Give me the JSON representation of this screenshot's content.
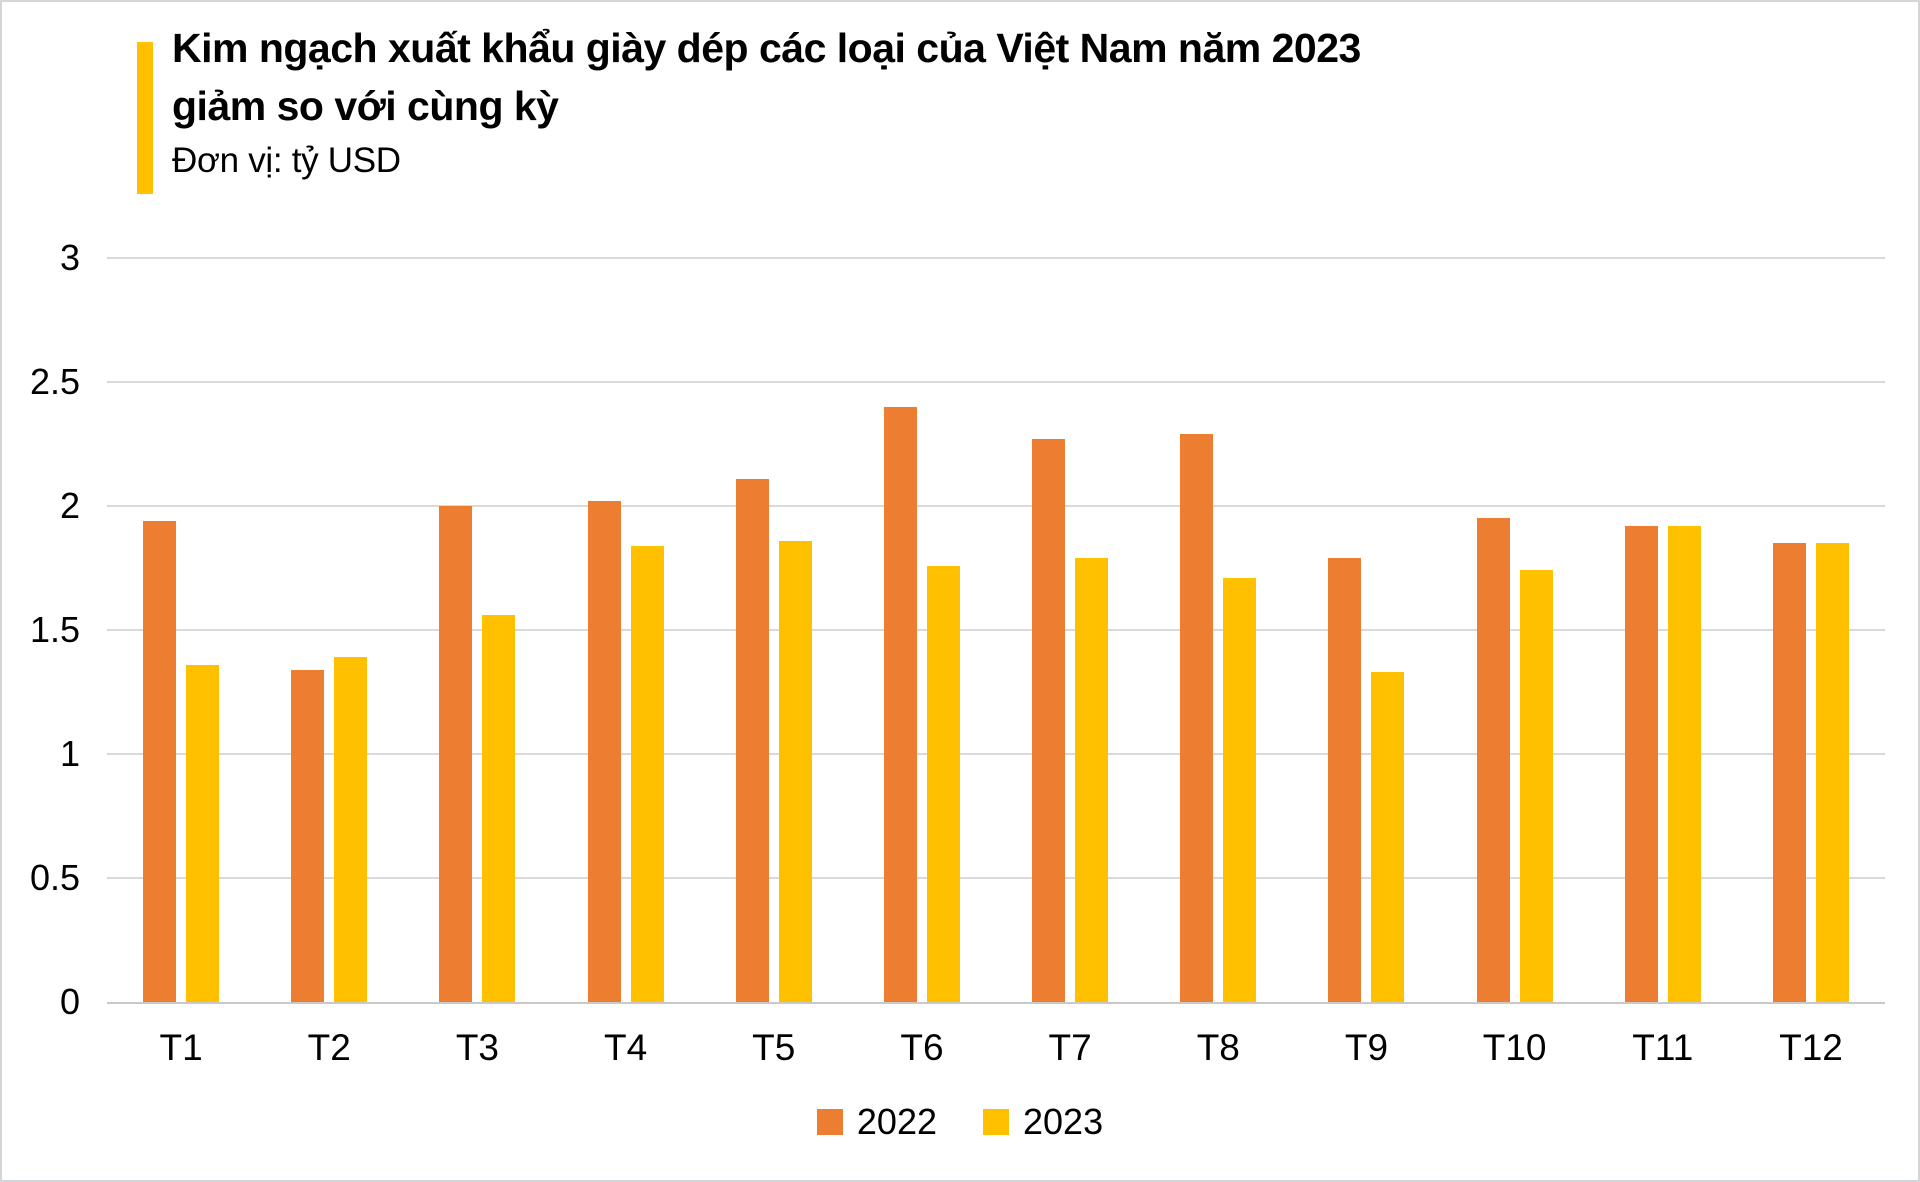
{
  "header": {
    "title_line1": "Kim ngạch xuất khẩu giày dép các loại của Việt Nam năm 2023",
    "title_line2": "giảm so với cùng kỳ",
    "unit_label": "Đơn vị: tỷ USD"
  },
  "colors": {
    "accent": "#FFC000",
    "series_2022": "#ED7D31",
    "series_2023": "#FFC000",
    "gridline": "#D9D9D9",
    "axis_line": "#C9C9C9",
    "text": "#000000",
    "page_border": "#D3D6D9"
  },
  "chart_data": {
    "type": "bar",
    "title": "Kim ngạch xuất khẩu giày dép các loại của Việt Nam năm 2023 giảm so với cùng kỳ",
    "subtitle": "Đơn vị: tỷ USD",
    "xlabel": "",
    "ylabel": "tỷ USD",
    "categories": [
      "T1",
      "T2",
      "T3",
      "T4",
      "T5",
      "T6",
      "T7",
      "T8",
      "T9",
      "T10",
      "T11",
      "T12"
    ],
    "series": [
      {
        "name": "2022",
        "color": "#ED7D31",
        "values": [
          1.94,
          1.34,
          2.0,
          2.02,
          2.11,
          2.4,
          2.27,
          2.29,
          1.79,
          1.95,
          1.92,
          1.85
        ]
      },
      {
        "name": "2023",
        "color": "#FFC000",
        "values": [
          1.36,
          1.39,
          1.56,
          1.84,
          1.86,
          1.76,
          1.79,
          1.71,
          1.33,
          1.74,
          1.92,
          1.85
        ]
      }
    ],
    "ylim": [
      0,
      3
    ],
    "y_ticks": [
      0,
      0.5,
      1,
      1.5,
      2,
      2.5,
      3
    ],
    "y_tick_labels": [
      "0",
      "0.5",
      "1",
      "1.5",
      "2",
      "2.5",
      "3"
    ],
    "grid": "horizontal",
    "legend_position": "bottom"
  }
}
